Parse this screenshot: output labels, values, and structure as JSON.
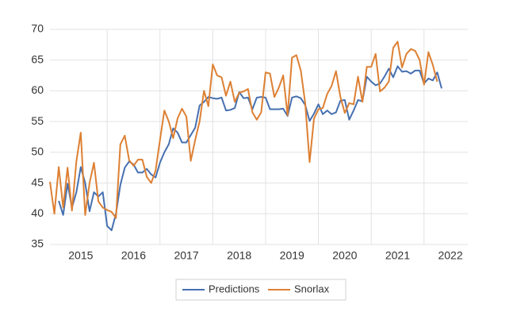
{
  "chart_data": {
    "type": "line",
    "categories": [
      null,
      null,
      null,
      null,
      null,
      null,
      null,
      "2015",
      null,
      null,
      null,
      null,
      null,
      null,
      null,
      null,
      null,
      null,
      null,
      "2016",
      null,
      null,
      null,
      null,
      null,
      null,
      null,
      null,
      null,
      null,
      null,
      "2017",
      null,
      null,
      null,
      null,
      null,
      null,
      null,
      null,
      null,
      null,
      null,
      "2018",
      null,
      null,
      null,
      null,
      null,
      null,
      null,
      null,
      null,
      null,
      null,
      "2019",
      null,
      null,
      null,
      null,
      null,
      null,
      null,
      null,
      null,
      null,
      null,
      "2020",
      null,
      null,
      null,
      null,
      null,
      null,
      null,
      null,
      null,
      null,
      null,
      "2021",
      null,
      null,
      null,
      null,
      null,
      null,
      null,
      null,
      null,
      null,
      null,
      "2022"
    ],
    "series": [
      {
        "name": "Predictions",
        "color": "#4670b0",
        "values": [
          null,
          null,
          42.1,
          39.8,
          44.9,
          41,
          43.5,
          47.6,
          45,
          40.4,
          43.5,
          42.8,
          43.5,
          38,
          37.3,
          40,
          44.7,
          47.5,
          48.5,
          48,
          46.7,
          46.7,
          47.3,
          46.4,
          45.9,
          48.3,
          50,
          51.3,
          53.9,
          53.2,
          51.6,
          51.6,
          52.8,
          54,
          57.6,
          58.2,
          59,
          58.8,
          58.7,
          58.9,
          56.8,
          56.9,
          57.2,
          59.8,
          58.8,
          58.9,
          57,
          58.9,
          59,
          58.9,
          57,
          57,
          57,
          57.1,
          55.9,
          58.9,
          59.1,
          58.8,
          57.7,
          55.1,
          56.3,
          57.8,
          56.2,
          56.8,
          56.2,
          56.5,
          58.4,
          58.5,
          55.3,
          56.8,
          58.5,
          58.3,
          62.3,
          61.5,
          60.9,
          61.2,
          62.3,
          63.6,
          62.2,
          64,
          63.1,
          63.2,
          62.8,
          63.3,
          63.3,
          61.2,
          62,
          61.7,
          63,
          60.4,
          null,
          null
        ]
      },
      {
        "name": "Snorlax",
        "color": "#dd8033",
        "values": [
          45.2,
          40,
          47.6,
          41,
          47.5,
          40.5,
          48.5,
          53.2,
          39.8,
          45,
          48.3,
          42,
          41,
          40.6,
          40.3,
          39.3,
          51.3,
          52.7,
          48.7,
          47.8,
          48.8,
          48.8,
          46,
          45,
          47,
          52,
          56.8,
          55,
          52.3,
          55.5,
          57.1,
          55.8,
          48.6,
          52,
          55,
          60,
          57.5,
          64.3,
          62.5,
          62.2,
          59.2,
          61.5,
          58.2,
          59.7,
          59.9,
          60.3,
          56.5,
          55.3,
          56.5,
          63,
          62.8,
          59,
          60.5,
          62.5,
          56,
          65.4,
          65.8,
          63.3,
          58,
          48.4,
          55.5,
          57,
          57.2,
          59.5,
          60.8,
          63.2,
          59,
          56.4,
          58,
          57.8,
          62.3,
          58.2,
          63.9,
          63.9,
          66,
          59.9,
          60.5,
          61.5,
          67,
          68,
          63.8,
          66,
          66.8,
          66.5,
          65,
          61,
          66.3,
          64.2,
          61.5,
          null,
          null,
          null
        ]
      }
    ],
    "ylim": [
      35,
      70
    ],
    "yticks": [
      35,
      40,
      45,
      50,
      55,
      60,
      65,
      70
    ],
    "grid": true,
    "legend": "bottom"
  }
}
